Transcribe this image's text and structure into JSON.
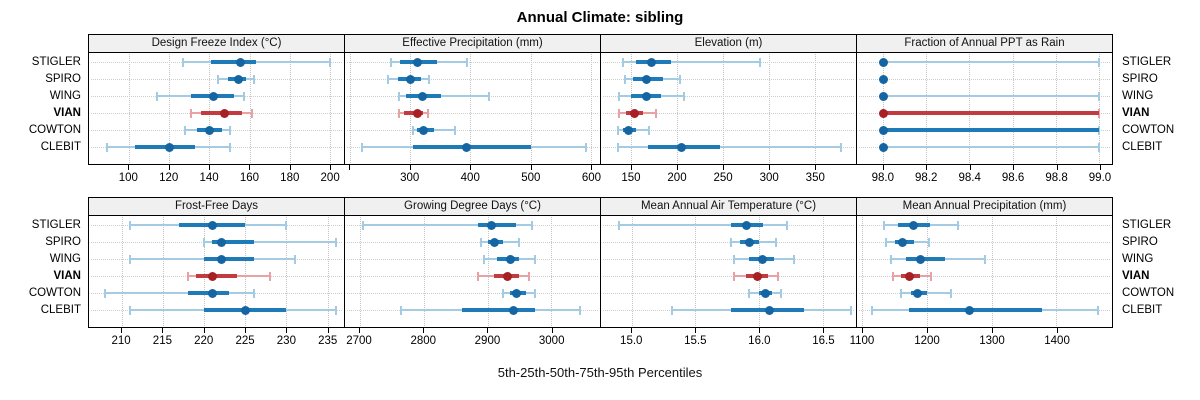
{
  "chart_data": {
    "type": "scatter",
    "subtype": "percentile-dot-whisker-trellis",
    "title": "Annual Climate: sibling",
    "xlabel": "5th-25th-50th-75th-95th Percentiles",
    "percentiles": [
      "5th",
      "25th",
      "50th",
      "75th",
      "95th"
    ],
    "stations": [
      "STIGLER",
      "SPIRO",
      "WING",
      "VIAN",
      "COWTON",
      "CLEBIT"
    ],
    "highlight_station": "VIAN",
    "legend_position": "none",
    "grid": "dotted",
    "colors": {
      "blue_light": "#a3cbe3",
      "blue_mid": "#1f7ab8",
      "blue_dot": "#1565a3",
      "red_light": "#e8a2a5",
      "red_mid": "#c23b40",
      "red_dot": "#a62024",
      "strip_bg": "#f0f0f0",
      "grid_line": "#c9c9c9"
    },
    "panels": [
      {
        "title": "Design Freeze Index (°C)",
        "xlim": [
          80,
          207
        ],
        "ticks": [
          {
            "v": 100,
            "label": "100"
          },
          {
            "v": 120,
            "label": "120"
          },
          {
            "v": 140,
            "label": "140"
          },
          {
            "v": 160,
            "label": "160"
          },
          {
            "v": 180,
            "label": "180"
          },
          {
            "v": 200,
            "label": "200"
          }
        ],
        "values": {
          "STIGLER": [
            127,
            141,
            155,
            163,
            200
          ],
          "SPIRO": [
            144,
            149,
            154,
            158,
            162
          ],
          "WING": [
            114,
            131,
            142,
            152,
            157
          ],
          "VIAN": [
            131,
            136,
            147,
            156,
            161
          ],
          "COWTON": [
            128,
            134,
            140,
            146,
            150
          ],
          "CLEBIT": [
            89,
            103,
            120,
            133,
            150
          ]
        }
      },
      {
        "title": "Effective Precipitation (mm)",
        "xlim": [
          192,
          615
        ],
        "ticks": [
          {
            "v": 200,
            "label": ""
          },
          {
            "v": 300,
            "label": "300"
          },
          {
            "v": 400,
            "label": "400"
          },
          {
            "v": 500,
            "label": "500"
          },
          {
            "v": 600,
            "label": "600"
          }
        ],
        "values": {
          "STIGLER": [
            269,
            283,
            312,
            345,
            395
          ],
          "SPIRO": [
            263,
            280,
            300,
            318,
            332
          ],
          "WING": [
            282,
            294,
            320,
            352,
            431
          ],
          "VIAN": [
            282,
            290,
            311,
            322,
            330
          ],
          "COWTON": [
            305,
            312,
            321,
            340,
            374
          ],
          "CLEBIT": [
            220,
            305,
            393,
            500,
            591
          ]
        }
      },
      {
        "title": "Elevation (m)",
        "xlim": [
          117,
          395
        ],
        "ticks": [
          {
            "v": 150,
            "label": "150"
          },
          {
            "v": 200,
            "label": "200"
          },
          {
            "v": 250,
            "label": "250"
          },
          {
            "v": 300,
            "label": "300"
          },
          {
            "v": 350,
            "label": "350"
          }
        ],
        "values": {
          "STIGLER": [
            141,
            155,
            171,
            193,
            290
          ],
          "SPIRO": [
            143,
            152,
            166,
            185,
            203
          ],
          "WING": [
            137,
            150,
            166,
            182,
            208
          ],
          "VIAN": [
            137,
            144,
            153,
            163,
            177
          ],
          "COWTON": [
            135,
            141,
            146,
            155,
            169
          ],
          "CLEBIT": [
            135,
            168,
            204,
            247,
            379
          ]
        }
      },
      {
        "title": "Fraction of Annual PPT as Rain",
        "xlim": [
          97.88,
          99.06
        ],
        "ticks": [
          {
            "v": 98.0,
            "label": "98.0"
          },
          {
            "v": 98.2,
            "label": "98.2"
          },
          {
            "v": 98.4,
            "label": "98.4"
          },
          {
            "v": 98.6,
            "label": "98.6"
          },
          {
            "v": 98.8,
            "label": "98.8"
          },
          {
            "v": 99.0,
            "label": "99.0"
          }
        ],
        "values": {
          "STIGLER": [
            98,
            98,
            98,
            98,
            99
          ],
          "SPIRO": [
            98,
            98,
            98,
            98,
            98
          ],
          "WING": [
            98,
            98,
            98,
            98,
            99
          ],
          "VIAN": [
            98,
            98,
            98,
            99,
            99
          ],
          "COWTON": [
            98,
            98,
            98,
            99,
            99
          ],
          "CLEBIT": [
            98,
            98,
            98,
            98,
            99
          ]
        }
      },
      {
        "title": "Frost-Free Days",
        "xlim": [
          206,
          237
        ],
        "ticks": [
          {
            "v": 210,
            "label": "210"
          },
          {
            "v": 215,
            "label": "215"
          },
          {
            "v": 220,
            "label": "220"
          },
          {
            "v": 225,
            "label": "225"
          },
          {
            "v": 230,
            "label": "230"
          },
          {
            "v": 235,
            "label": "235"
          }
        ],
        "values": {
          "STIGLER": [
            211,
            217,
            221,
            225,
            230
          ],
          "SPIRO": [
            220,
            221,
            222,
            226,
            236
          ],
          "WING": [
            211,
            220,
            222,
            226,
            231
          ],
          "VIAN": [
            218,
            219,
            221,
            224,
            228
          ],
          "COWTON": [
            208,
            218,
            221,
            223,
            226
          ],
          "CLEBIT": [
            211,
            220,
            225,
            230,
            236
          ]
        }
      },
      {
        "title": "Growing Degree Days (°C)",
        "xlim": [
          2677,
          3076
        ],
        "ticks": [
          {
            "v": 2700,
            "label": "2700"
          },
          {
            "v": 2800,
            "label": "2800"
          },
          {
            "v": 2900,
            "label": "2900"
          },
          {
            "v": 3000,
            "label": "3000"
          }
        ],
        "values": {
          "STIGLER": [
            2705,
            2885,
            2905,
            2945,
            2970
          ],
          "SPIRO": [
            2890,
            2900,
            2910,
            2925,
            2950
          ],
          "WING": [
            2895,
            2915,
            2935,
            2950,
            2975
          ],
          "VIAN": [
            2885,
            2910,
            2930,
            2950,
            2965
          ],
          "COWTON": [
            2925,
            2935,
            2945,
            2960,
            2975
          ],
          "CLEBIT": [
            2765,
            2860,
            2940,
            2975,
            3045
          ]
        }
      },
      {
        "title": "Mean Annual Air Temperature (°C)",
        "xlim": [
          14.76,
          16.76
        ],
        "ticks": [
          {
            "v": 15.0,
            "label": "15.0"
          },
          {
            "v": 15.5,
            "label": "15.5"
          },
          {
            "v": 16.0,
            "label": "16.0"
          },
          {
            "v": 16.5,
            "label": "16.5"
          }
        ],
        "values": {
          "STIGLER": [
            14.9,
            15.78,
            15.9,
            16.03,
            16.22
          ],
          "SPIRO": [
            15.78,
            15.85,
            15.92,
            16.0,
            16.13
          ],
          "WING": [
            15.8,
            15.92,
            16.02,
            16.12,
            16.27
          ],
          "VIAN": [
            15.8,
            15.9,
            15.98,
            16.07,
            16.15
          ],
          "COWTON": [
            15.92,
            16.0,
            16.05,
            16.1,
            16.17
          ],
          "CLEBIT": [
            15.32,
            15.78,
            16.08,
            16.35,
            16.72
          ]
        }
      },
      {
        "title": "Mean Annual Precipitation (mm)",
        "xlim": [
          1092,
          1486
        ],
        "ticks": [
          {
            "v": 1100,
            "label": "1100"
          },
          {
            "v": 1200,
            "label": "1200"
          },
          {
            "v": 1300,
            "label": "1300"
          },
          {
            "v": 1400,
            "label": "1400"
          }
        ],
        "values": {
          "STIGLER": [
            1133,
            1155,
            1178,
            1205,
            1248
          ],
          "SPIRO": [
            1137,
            1150,
            1162,
            1180,
            1203
          ],
          "WING": [
            1145,
            1168,
            1190,
            1228,
            1290
          ],
          "VIAN": [
            1148,
            1160,
            1173,
            1190,
            1207
          ],
          "COWTON": [
            1160,
            1175,
            1185,
            1200,
            1237
          ],
          "CLEBIT": [
            1115,
            1172,
            1265,
            1378,
            1465
          ]
        }
      }
    ]
  }
}
